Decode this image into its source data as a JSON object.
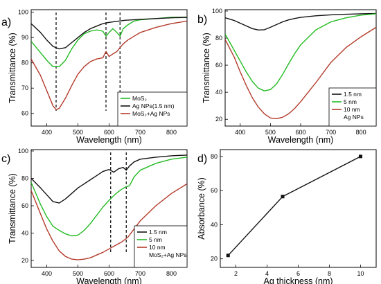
{
  "chart_data": [
    {
      "panel": "a)",
      "type": "line",
      "xlabel": "Wavelength (nm)",
      "ylabel": "Transmittance (%)",
      "xlim": [
        350,
        850
      ],
      "ylim": [
        55,
        101
      ],
      "xticks": [
        "400",
        "500",
        "600",
        "700",
        "800"
      ],
      "yticks": [
        "60",
        "70",
        "80",
        "90",
        "100"
      ],
      "legend_position": "bottom-right",
      "vlines": [
        430,
        590,
        635
      ],
      "series": [
        {
          "name": "MoS₂",
          "color": "#22bb22",
          "x": [
            350,
            380,
            400,
            420,
            440,
            460,
            480,
            500,
            520,
            540,
            560,
            580,
            590,
            600,
            612,
            625,
            635,
            645,
            660,
            680,
            700,
            750,
            800,
            850
          ],
          "y": [
            88.5,
            84,
            81,
            78.5,
            78.5,
            81,
            85.5,
            89,
            91.5,
            92.5,
            93,
            92.5,
            90.5,
            92,
            93.5,
            92,
            90.5,
            93.5,
            95,
            96.5,
            97,
            97.5,
            98,
            98
          ]
        },
        {
          "name": "Ag NPs(1.5 nm)",
          "color": "#111111",
          "x": [
            350,
            380,
            400,
            420,
            440,
            460,
            480,
            500,
            520,
            540,
            560,
            580,
            600,
            650,
            700,
            750,
            800,
            850
          ],
          "y": [
            95.5,
            92,
            89,
            86.5,
            85.5,
            86,
            88,
            90,
            92,
            93.5,
            94.5,
            95.5,
            96,
            96.8,
            97.2,
            97.5,
            97.8,
            98
          ]
        },
        {
          "name": "MoS₂+Ag NPs",
          "color": "#b33a2a",
          "x": [
            350,
            380,
            400,
            420,
            430,
            440,
            460,
            480,
            500,
            520,
            540,
            560,
            580,
            590,
            600,
            612,
            625,
            635,
            645,
            660,
            680,
            700,
            750,
            800,
            850
          ],
          "y": [
            81.5,
            75,
            69,
            63,
            61.5,
            62,
            66,
            71,
            75.5,
            78.5,
            80.5,
            81.5,
            82,
            84.5,
            82.5,
            83.5,
            84.5,
            86,
            87.5,
            89,
            90.5,
            92,
            94,
            95.5,
            96.5
          ]
        }
      ]
    },
    {
      "panel": "b)",
      "type": "line",
      "xlabel": "Wavelength (nm)",
      "ylabel": "Transmittance (%)",
      "xlim": [
        350,
        850
      ],
      "ylim": [
        15,
        101
      ],
      "xticks": [
        "400",
        "500",
        "600",
        "700",
        "800"
      ],
      "yticks": [
        "20",
        "40",
        "60",
        "80",
        "100"
      ],
      "legend_position": "bottom-right",
      "legend_note": "Ag NPs",
      "series": [
        {
          "name": "1.5 nm",
          "color": "#111111",
          "x": [
            350,
            380,
            400,
            420,
            440,
            460,
            480,
            500,
            520,
            540,
            560,
            580,
            600,
            650,
            700,
            750,
            800,
            850
          ],
          "y": [
            95,
            93,
            91,
            89,
            87,
            86,
            86.2,
            88,
            90,
            92,
            93.5,
            94.5,
            95.3,
            96.5,
            97.2,
            97.6,
            98,
            98.2
          ]
        },
        {
          "name": "5 nm",
          "color": "#22bb22",
          "x": [
            350,
            380,
            400,
            420,
            440,
            460,
            480,
            500,
            520,
            540,
            560,
            580,
            600,
            650,
            700,
            750,
            800,
            850
          ],
          "y": [
            83,
            71,
            63,
            55,
            48,
            43,
            41,
            42,
            46,
            53,
            61,
            68.5,
            75,
            86,
            92,
            95,
            97,
            98
          ]
        },
        {
          "name": "10 nm",
          "color": "#b33a2a",
          "x": [
            350,
            380,
            400,
            420,
            440,
            460,
            480,
            500,
            520,
            540,
            560,
            580,
            600,
            650,
            700,
            750,
            800,
            850
          ],
          "y": [
            79,
            66,
            55,
            45,
            36,
            29,
            24,
            21,
            20.5,
            21.5,
            24,
            28,
            33,
            47,
            62,
            73,
            81,
            88
          ]
        }
      ]
    },
    {
      "panel": "c)",
      "type": "line",
      "xlabel": "Wavelength (nm)",
      "ylabel": "Transmittance (%)",
      "xlim": [
        350,
        850
      ],
      "ylim": [
        15,
        101
      ],
      "xticks": [
        "400",
        "500",
        "600",
        "700",
        "800"
      ],
      "yticks": [
        "20",
        "40",
        "60",
        "80",
        "100"
      ],
      "legend_position": "bottom-right",
      "legend_note": "MoS₂+Ag NPs",
      "vlines": [
        605,
        655
      ],
      "series": [
        {
          "name": "1.5 nm",
          "color": "#111111",
          "x": [
            350,
            380,
            400,
            420,
            440,
            460,
            480,
            500,
            520,
            540,
            560,
            580,
            600,
            615,
            630,
            645,
            655,
            665,
            680,
            700,
            750,
            800,
            850
          ],
          "y": [
            80,
            73,
            68,
            63,
            62,
            65,
            69,
            73,
            76,
            79,
            82,
            85,
            86.5,
            84.5,
            87,
            88,
            86,
            89,
            92,
            94,
            95.5,
            96.5,
            97
          ]
        },
        {
          "name": "5 nm",
          "color": "#22bb22",
          "x": [
            350,
            380,
            400,
            420,
            440,
            460,
            480,
            500,
            520,
            540,
            560,
            580,
            600,
            620,
            640,
            655,
            665,
            680,
            700,
            750,
            800,
            850
          ],
          "y": [
            77,
            61,
            52,
            45,
            42,
            39.5,
            38,
            38.5,
            42,
            47,
            53,
            59,
            64,
            68.5,
            72,
            74,
            74.5,
            81,
            86,
            91,
            94,
            95.5
          ]
        },
        {
          "name": "10 nm",
          "color": "#b33a2a",
          "x": [
            350,
            380,
            400,
            420,
            440,
            460,
            480,
            500,
            520,
            540,
            560,
            580,
            600,
            620,
            640,
            660,
            680,
            700,
            750,
            800,
            850
          ],
          "y": [
            71,
            54,
            43,
            34,
            27,
            23,
            21,
            20.5,
            21,
            22,
            24,
            26,
            28.5,
            31,
            33.5,
            37,
            43,
            49,
            60,
            69,
            76
          ]
        }
      ]
    },
    {
      "panel": "d)",
      "type": "line",
      "xlabel": "Ag thickness (nm)",
      "ylabel": "Absorbance (%)",
      "xlim": [
        1,
        11
      ],
      "ylim": [
        15,
        84
      ],
      "xticks": [
        "2",
        "4",
        "6",
        "8",
        "10"
      ],
      "yticks": [
        "20",
        "40",
        "60",
        "80"
      ],
      "series": [
        {
          "name": "",
          "color": "#111111",
          "marker": "square",
          "x": [
            1.5,
            5,
            10
          ],
          "y": [
            22,
            56.5,
            80
          ]
        }
      ]
    }
  ]
}
